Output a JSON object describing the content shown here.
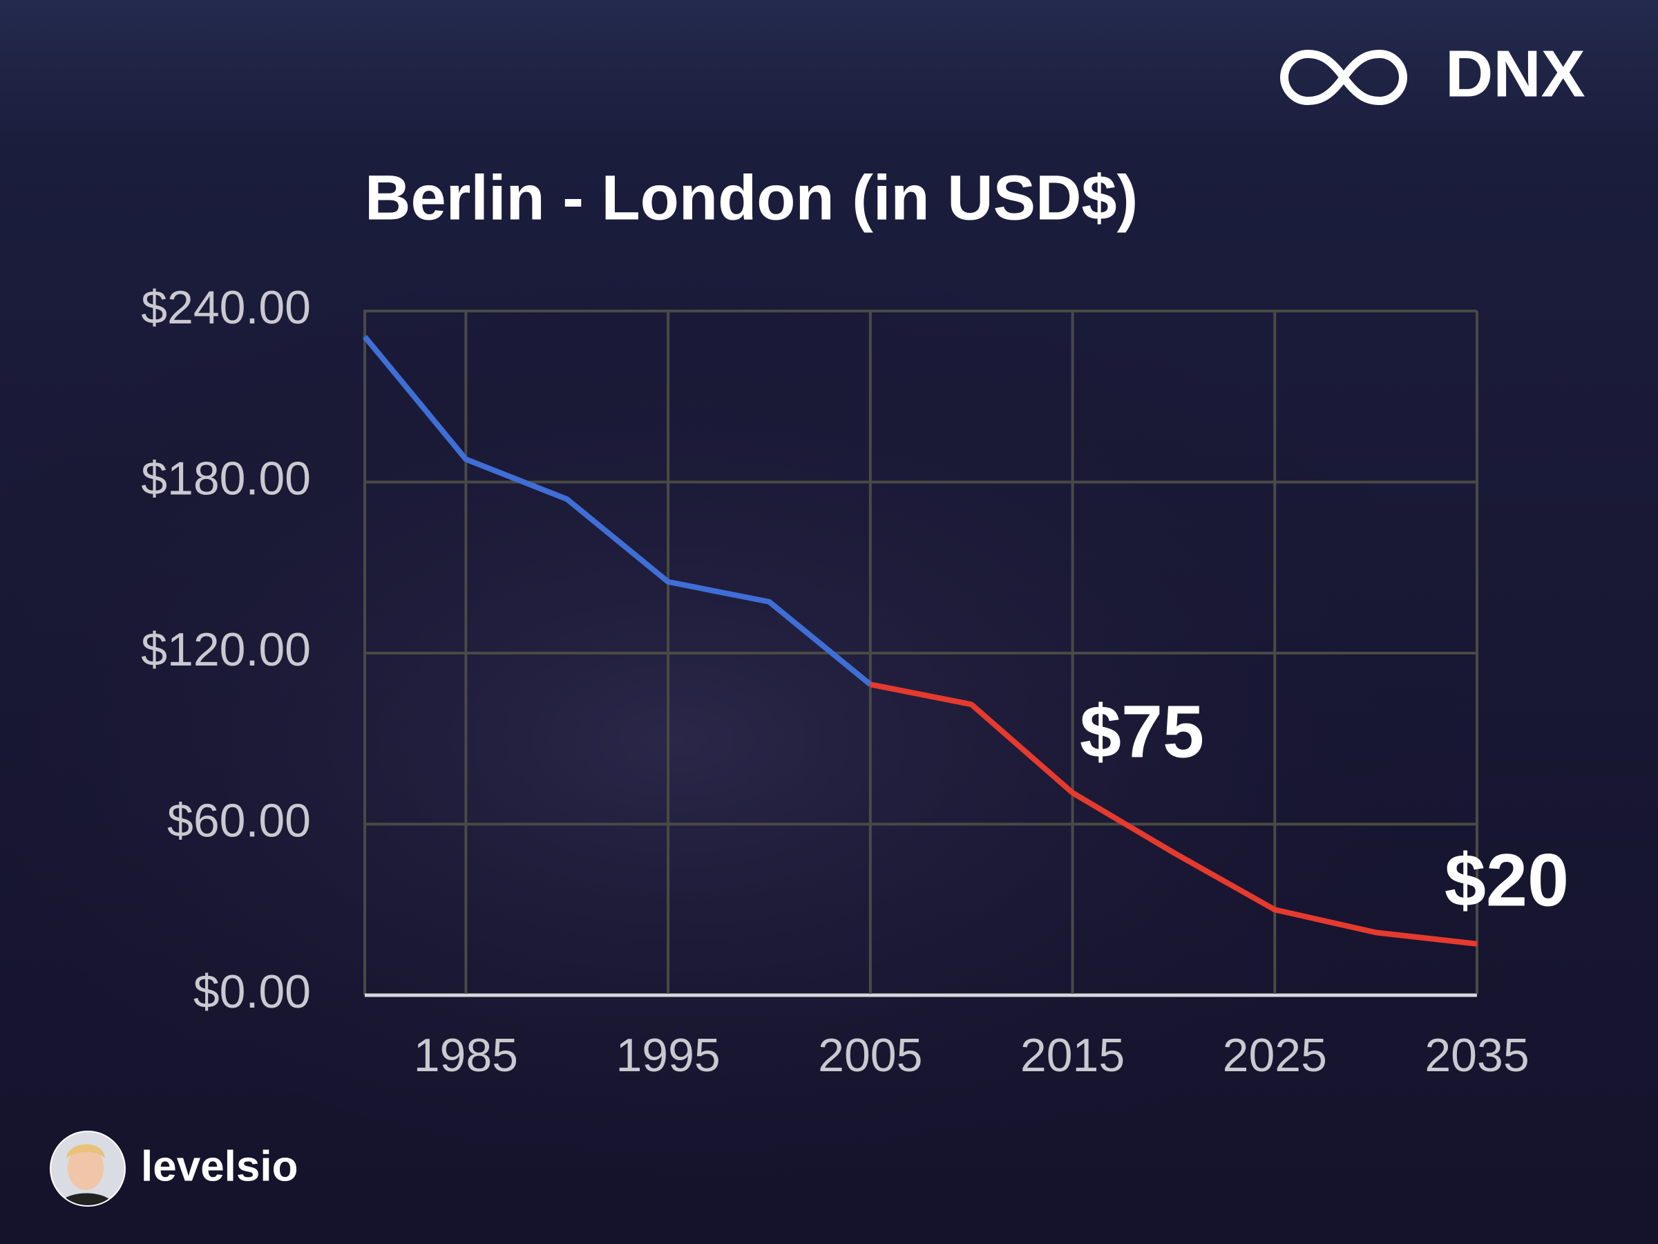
{
  "chart_data": {
    "type": "line",
    "title": "Berlin - London (in USD$)",
    "x": [
      1980,
      1985,
      1990,
      1995,
      2000,
      2005,
      2010,
      2015,
      2020,
      2025,
      2030,
      2035
    ],
    "series": [
      {
        "color": "#3f6fd6",
        "values": [
          231,
          188,
          174,
          145,
          138,
          109,
          null,
          null,
          null,
          null,
          null,
          null
        ]
      },
      {
        "color": "#e63a2e",
        "values": [
          null,
          null,
          null,
          null,
          null,
          109,
          102,
          71,
          50,
          30,
          22,
          18
        ]
      }
    ],
    "annotations": [
      "$75",
      "$20"
    ],
    "xlim": [
      1980,
      2035
    ],
    "xticks": [
      1985,
      1995,
      2005,
      2015,
      2025,
      2035
    ],
    "ylim": [
      0,
      240
    ],
    "yticks": [
      {
        "value": 0,
        "label": "$0.00"
      },
      {
        "value": 60,
        "label": "$60.00"
      },
      {
        "value": 120,
        "label": "$120.00"
      },
      {
        "value": 180,
        "label": "$180.00"
      },
      {
        "value": 240,
        "label": "$240.00"
      }
    ],
    "grid": true
  },
  "brand": "DNX",
  "author": "levelsio"
}
